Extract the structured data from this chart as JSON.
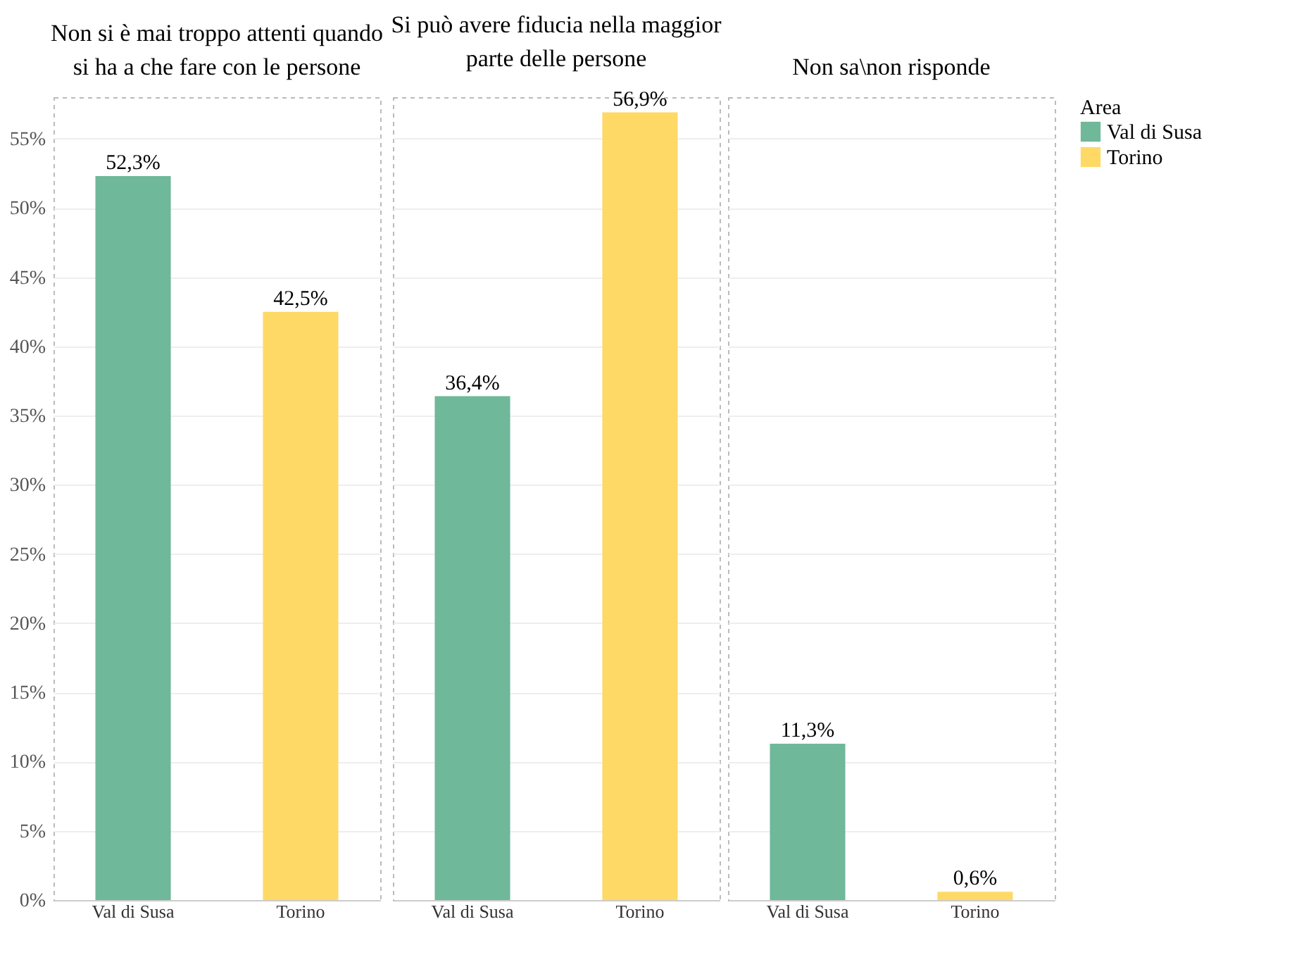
{
  "chart_data": [
    {
      "type": "bar",
      "title": "Non si è mai troppo attenti quando si ha a che fare con le persone",
      "categories": [
        "Val di Susa",
        "Torino"
      ],
      "series": [
        {
          "color": "#6fb899",
          "values": [
            52.3,
            null
          ],
          "value_labels": [
            "52,3%",
            null
          ]
        },
        {
          "color": "#ffd966",
          "values": [
            null,
            42.5
          ],
          "value_labels": [
            null,
            "42,5%"
          ]
        }
      ],
      "ylim": [
        0,
        58
      ],
      "yticks": [
        {
          "value": 0,
          "label": "0%"
        },
        {
          "value": 5,
          "label": "5%"
        },
        {
          "value": 10,
          "label": "10%"
        },
        {
          "value": 15,
          "label": "15%"
        },
        {
          "value": 20,
          "label": "20%"
        },
        {
          "value": 25,
          "label": "25%"
        },
        {
          "value": 30,
          "label": "30%"
        },
        {
          "value": 35,
          "label": "35%"
        },
        {
          "value": 40,
          "label": "40%"
        },
        {
          "value": 45,
          "label": "45%"
        },
        {
          "value": 50,
          "label": "50%"
        },
        {
          "value": 55,
          "label": "55%"
        }
      ],
      "grid": "y"
    },
    {
      "type": "bar",
      "title": "Si può avere fiducia nella maggior parte delle persone",
      "categories": [
        "Val di Susa",
        "Torino"
      ],
      "series": [
        {
          "color": "#6fb899",
          "values": [
            36.4,
            null
          ],
          "value_labels": [
            "36,4%",
            null
          ]
        },
        {
          "color": "#ffd966",
          "values": [
            null,
            56.9
          ],
          "value_labels": [
            null,
            "56,9%"
          ]
        }
      ],
      "ylim": [
        0,
        58
      ],
      "yticks": [
        0,
        5,
        10,
        15,
        20,
        25,
        30,
        35,
        40,
        45,
        50,
        55
      ],
      "grid": "y",
      "tick_labels": "x"
    },
    {
      "type": "bar",
      "title": "Non sa\\non risponde",
      "categories": [
        "Val di Susa",
        "Torino"
      ],
      "series": [
        {
          "name": "Val di Susa",
          "color": "#6fb899",
          "values": [
            11.3,
            null
          ],
          "value_labels": [
            "11,3%",
            null
          ]
        },
        {
          "name": "Torino",
          "color": "#ffd966",
          "values": [
            null,
            0.6
          ],
          "value_labels": [
            null,
            "0,6%"
          ]
        }
      ],
      "ylim": [
        0,
        58
      ],
      "yticks": [
        0,
        5,
        10,
        15,
        20,
        25,
        30,
        35,
        40,
        45,
        50,
        55
      ],
      "grid": "y",
      "tick_labels": "x",
      "legend": "right",
      "legend_title": "Area"
    }
  ]
}
